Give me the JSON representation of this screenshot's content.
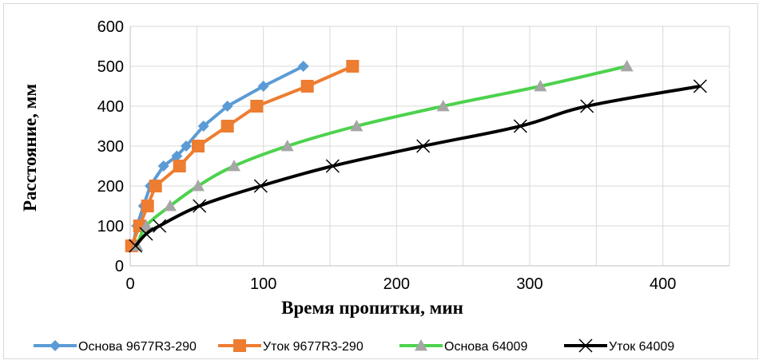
{
  "chart_data": {
    "type": "line",
    "title": "",
    "xlabel": "Время пропитки, мин",
    "ylabel": "Расстояние, мм",
    "xlim": [
      0,
      450
    ],
    "ylim": [
      0,
      600
    ],
    "x_ticks": [
      0,
      100,
      200,
      300,
      400
    ],
    "y_ticks": [
      0,
      100,
      200,
      300,
      400,
      500,
      600
    ],
    "grid": true,
    "legend_position": "bottom",
    "series": [
      {
        "name": "Основа 9677R3-290",
        "color": "#5B9BD5",
        "marker": "diamond",
        "points": [
          [
            2,
            50
          ],
          [
            5,
            100
          ],
          [
            10,
            150
          ],
          [
            15,
            200
          ],
          [
            25,
            250
          ],
          [
            35,
            275
          ],
          [
            42,
            300
          ],
          [
            55,
            350
          ],
          [
            73,
            400
          ],
          [
            100,
            450
          ],
          [
            130,
            500
          ]
        ]
      },
      {
        "name": "Уток 9677R3-290",
        "color": "#ED7D31",
        "marker": "square",
        "points": [
          [
            1,
            50
          ],
          [
            7,
            100
          ],
          [
            13,
            150
          ],
          [
            19,
            200
          ],
          [
            37,
            250
          ],
          [
            51,
            300
          ],
          [
            73,
            350
          ],
          [
            95,
            400
          ],
          [
            133,
            450
          ],
          [
            167,
            500
          ]
        ]
      },
      {
        "name": "Основа 64009",
        "color": "#4DD24D",
        "marker": "triangle",
        "points": [
          [
            5,
            50
          ],
          [
            12,
            100
          ],
          [
            30,
            150
          ],
          [
            51,
            200
          ],
          [
            78,
            250
          ],
          [
            118,
            300
          ],
          [
            170,
            350
          ],
          [
            235,
            400
          ],
          [
            308,
            450
          ],
          [
            373,
            500
          ]
        ]
      },
      {
        "name": "Уток 64009",
        "color": "#000000",
        "marker": "x",
        "points": [
          [
            4,
            50
          ],
          [
            12,
            80
          ],
          [
            22,
            100
          ],
          [
            52,
            150
          ],
          [
            98,
            200
          ],
          [
            152,
            250
          ],
          [
            220,
            300
          ],
          [
            293,
            350
          ],
          [
            343,
            400
          ],
          [
            428,
            450
          ]
        ]
      }
    ]
  }
}
